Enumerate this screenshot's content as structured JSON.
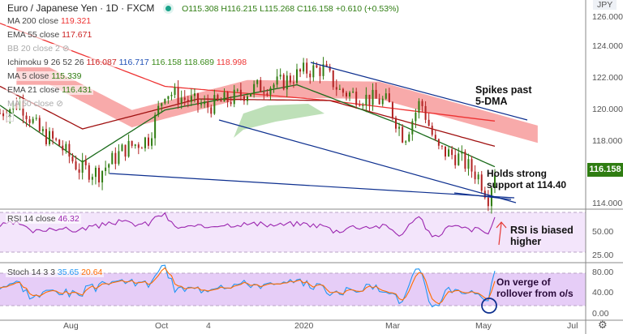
{
  "header": {
    "title": "Euro / Japanese Yen · 1D · FXCM",
    "open": "O115.308",
    "high": "H116.215",
    "low": "L115.268",
    "close": "C116.158",
    "change": "+0.610 (+0.53%)",
    "currency": "JPY"
  },
  "legend": {
    "ma200": {
      "label": "MA 200 close",
      "value": "119.321"
    },
    "ema55": {
      "label": "EMA 55 close",
      "value": "117.671"
    },
    "bb": {
      "label": "BB 20 close 2"
    },
    "ichimoku": {
      "label": "Ichimoku 9 26 52 26",
      "v1": "116.087",
      "v2": "116.717",
      "v3": "116.158",
      "v4": "118.689",
      "v5": "118.998"
    },
    "ma5": {
      "label": "MA 5 close",
      "value": "115.339"
    },
    "ema21": {
      "label": "EMA 21 close",
      "value": "116.431"
    },
    "ma50": {
      "label": "MA 50 close"
    },
    "rsi": {
      "label": "RSI 14 close",
      "value": "46.32"
    },
    "stoch": {
      "label": "Stoch 14 3 3",
      "k": "35.65",
      "d": "20.64"
    }
  },
  "annotations": {
    "spikes": "Spikes past\n5-DMA",
    "holds": "Holds strong\nsupport at 114.40",
    "rsi": "RSI is biased\nhigher",
    "stoch": "On verge of\nrollover from o/s"
  },
  "last_price": "116.158",
  "colors": {
    "up": "#2f7d12",
    "down": "#b22222",
    "ma200": "#ee3333",
    "ema55": "#a01010",
    "ema21": "#1b6b1b",
    "rsi": "#9c27b0",
    "stochK": "#2196f3",
    "stochD": "#ff6d00",
    "trend": "#0d2f8f"
  },
  "chart_data": {
    "type": "line",
    "title": "Euro / Japanese Yen · 1D · FXCM",
    "x_ticks": [
      "Aug",
      "Oct",
      "4",
      "2020",
      "Mar",
      "May",
      "Jul"
    ],
    "y_ticks": [
      "126.000",
      "124.000",
      "122.000",
      "120.000",
      "118.000",
      "116.000",
      "114.000"
    ],
    "rsi_ticks": [
      "50.00",
      "25.00"
    ],
    "stoch_ticks": [
      "80.00",
      "40.00",
      "0.00"
    ],
    "ylim": [
      113.8,
      126.5
    ],
    "price_path": [
      [
        0,
        119.8
      ],
      [
        12,
        120.5
      ],
      [
        24,
        118.6
      ],
      [
        36,
        117.8
      ],
      [
        48,
        116.3
      ],
      [
        60,
        116.0
      ],
      [
        75,
        117.5
      ],
      [
        90,
        118.2
      ],
      [
        100,
        121.2
      ],
      [
        112,
        120.7
      ],
      [
        125,
        120.2
      ],
      [
        140,
        120.7
      ],
      [
        155,
        121.4
      ],
      [
        170,
        121.7
      ],
      [
        185,
        122.5
      ],
      [
        196,
        122.6
      ],
      [
        206,
        121.2
      ],
      [
        220,
        120.8
      ],
      [
        235,
        120.5
      ],
      [
        245,
        118.2
      ],
      [
        255,
        120.6
      ],
      [
        265,
        117.5
      ],
      [
        278,
        117.0
      ],
      [
        290,
        115.8
      ],
      [
        296,
        114.5
      ],
      [
        300,
        116.2
      ]
    ],
    "ma200_path": [
      [
        0,
        125.5
      ],
      [
        100,
        121.5
      ],
      [
        200,
        120.6
      ],
      [
        300,
        119.3
      ]
    ],
    "ema55_path": [
      [
        0,
        121.5
      ],
      [
        50,
        118.8
      ],
      [
        120,
        120.7
      ],
      [
        200,
        120.6
      ],
      [
        300,
        117.7
      ]
    ],
    "ema21_path": [
      [
        0,
        120.3
      ],
      [
        50,
        116.7
      ],
      [
        100,
        120.0
      ],
      [
        180,
        121.6
      ],
      [
        240,
        119.2
      ],
      [
        300,
        116.4
      ]
    ],
    "rsi_range": [
      20,
      80
    ],
    "stoch_range": [
      0,
      100
    ]
  }
}
